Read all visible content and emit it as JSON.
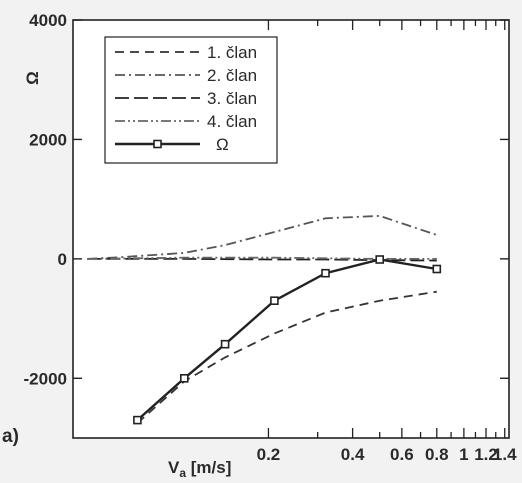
{
  "panel_label": "a)",
  "chart_data": {
    "type": "line",
    "xscale": "log",
    "xlabel": "V",
    "xlabel_sub": "a",
    "xlabel_unit": " [m/s]",
    "ylabel": "Ω",
    "xlim": [
      0.04,
      1.45
    ],
    "ylim": [
      -3000,
      4000
    ],
    "y_ticks": [
      -2000,
      0,
      2000,
      4000
    ],
    "y_tick_labels": [
      "-2000",
      "0",
      "2000",
      "4000"
    ],
    "x_tick_labels": [
      {
        "value": 0.2,
        "label": "0.2"
      },
      {
        "value": 0.4,
        "label": "0.4"
      },
      {
        "value": 0.6,
        "label": "0.6"
      },
      {
        "value": 0.8,
        "label": "0.8"
      },
      {
        "value": 1.0,
        "label": "1"
      },
      {
        "value": 1.2,
        "label": "1.2"
      },
      {
        "value": 1.4,
        "label": "1.4"
      }
    ],
    "x_minor_ticks": [
      0.2,
      0.3,
      0.4,
      0.5,
      0.6,
      0.7,
      0.8,
      0.9,
      1.0,
      1.1,
      1.2,
      1.3,
      1.4
    ],
    "grid": false,
    "legend_position": "top-left",
    "series": [
      {
        "name": "1. član",
        "dash": "9,6",
        "color": "#333333",
        "x": [
          0.068,
          0.1,
          0.14,
          0.21,
          0.32,
          0.5,
          0.8
        ],
        "y": [
          -2750,
          -2050,
          -1650,
          -1250,
          -900,
          -700,
          -550
        ]
      },
      {
        "name": "2. član",
        "dash": "10,4,2,4",
        "color": "#555555",
        "x": [
          0.045,
          0.06,
          0.1,
          0.14,
          0.21,
          0.32,
          0.5,
          0.8
        ],
        "y": [
          0,
          30,
          100,
          230,
          450,
          680,
          720,
          400
        ]
      },
      {
        "name": "3. član",
        "dash": "14,5",
        "color": "#222222",
        "x": [
          0.045,
          0.1,
          0.21,
          0.32,
          0.5,
          0.8
        ],
        "y": [
          0,
          0,
          -10,
          -10,
          -20,
          -30
        ]
      },
      {
        "name": "4. član",
        "dash": "10,3,2,3,2,3",
        "color": "#666666",
        "x": [
          0.045,
          0.1,
          0.21,
          0.32,
          0.5,
          0.8
        ],
        "y": [
          0,
          20,
          20,
          10,
          0,
          0
        ]
      },
      {
        "name": "Ω",
        "dash": "",
        "color": "#222222",
        "marker": "square",
        "x": [
          0.068,
          0.1,
          0.14,
          0.21,
          0.32,
          0.5,
          0.8
        ],
        "y": [
          -2700,
          -2000,
          -1430,
          -700,
          -240,
          -10,
          -170
        ]
      }
    ]
  }
}
